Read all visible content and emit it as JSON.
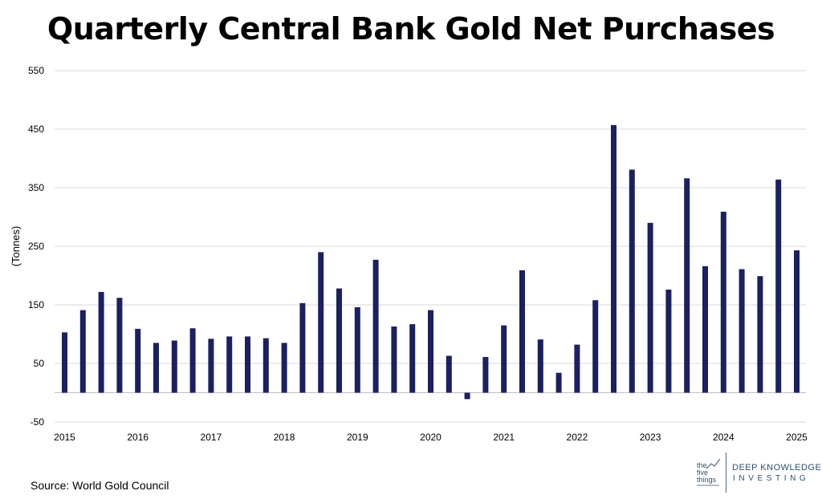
{
  "chart_data": {
    "type": "bar",
    "title": "Quarterly Central Bank Gold Net Purchases",
    "ylabel": "(Tonnes)",
    "xlabel": "",
    "ylim": [
      -50,
      550
    ],
    "yticks": [
      -50,
      50,
      150,
      250,
      350,
      450,
      550
    ],
    "grid": true,
    "bar_color": "#1b2060",
    "x_tick_labels": [
      "2015",
      "2016",
      "2017",
      "2018",
      "2019",
      "2020",
      "2021",
      "2022",
      "2023",
      "2024",
      "2025"
    ],
    "categories": [
      "2015 Q1",
      "2015 Q2",
      "2015 Q3",
      "2015 Q4",
      "2016 Q1",
      "2016 Q2",
      "2016 Q3",
      "2016 Q4",
      "2017 Q1",
      "2017 Q2",
      "2017 Q3",
      "2017 Q4",
      "2018 Q1",
      "2018 Q2",
      "2018 Q3",
      "2018 Q4",
      "2019 Q1",
      "2019 Q2",
      "2019 Q3",
      "2019 Q4",
      "2020 Q1",
      "2020 Q2",
      "2020 Q3",
      "2020 Q4",
      "2021 Q1",
      "2021 Q2",
      "2021 Q3",
      "2021 Q4",
      "2022 Q1",
      "2022 Q2",
      "2022 Q3",
      "2022 Q4",
      "2023 Q1",
      "2023 Q2",
      "2023 Q3",
      "2023 Q4",
      "2024 Q1",
      "2024 Q2",
      "2024 Q3",
      "2024 Q4",
      "2025 Q1"
    ],
    "values": [
      103,
      141,
      172,
      162,
      109,
      85,
      89,
      110,
      92,
      96,
      96,
      93,
      85,
      153,
      240,
      178,
      146,
      227,
      113,
      117,
      141,
      63,
      -11,
      61,
      115,
      209,
      91,
      34,
      82,
      158,
      457,
      381,
      290,
      176,
      366,
      216,
      309,
      211,
      199,
      364,
      243
    ]
  },
  "source": "Source: World Gold Council",
  "logo": {
    "mark_line1": "the",
    "mark_line2": "five",
    "mark_line3": "things",
    "name_line1": "DEEP KNOWLEDGE",
    "name_line2": "INVESTING",
    "color": "#2f4f6f"
  }
}
